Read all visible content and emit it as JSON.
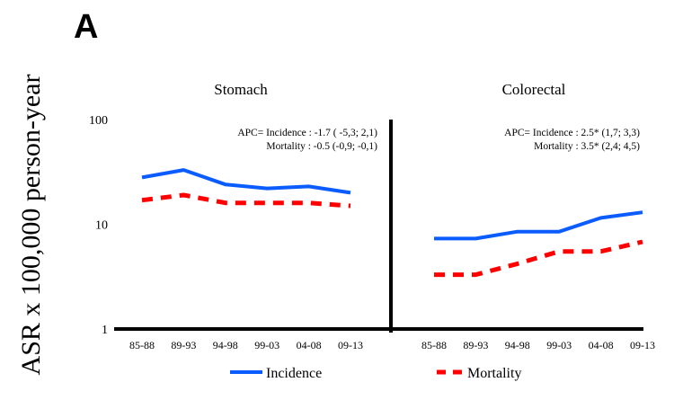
{
  "chart_data": {
    "type": "line",
    "panel_label": "A",
    "ylabel": "ASR x 100,000 person-year",
    "yscale": "log",
    "ylim": [
      1,
      100
    ],
    "yticks": [
      {
        "value": 100,
        "label": "100"
      },
      {
        "value": 10,
        "label": "10"
      },
      {
        "value": 1,
        "label": "1"
      }
    ],
    "grid": false,
    "legend": {
      "position": "bottom",
      "entries": [
        {
          "name": "Incidence",
          "color": "#0a5cff",
          "style": "solid"
        },
        {
          "name": "Mortality",
          "color": "#ff0000",
          "style": "dashed"
        }
      ]
    },
    "panels": [
      {
        "title": "Stomach",
        "categories": [
          "85-88",
          "89-93",
          "94-98",
          "99-03",
          "04-08",
          "09-13"
        ],
        "annotation": [
          "APC= Incidence : -1.7 ( -5,3; 2,1)",
          "Mortality : -0.5 (-0,9; -0,1)"
        ],
        "series": [
          {
            "name": "Incidence",
            "values": [
              28,
              33,
              24,
              22,
              23,
              20
            ]
          },
          {
            "name": "Mortality",
            "values": [
              17,
              19,
              16,
              16,
              16,
              15
            ]
          }
        ]
      },
      {
        "title": "Colorectal",
        "categories": [
          "85-88",
          "89-93",
          "94-98",
          "99-03",
          "04-08",
          "09-13"
        ],
        "annotation": [
          "APC= Incidence : 2.5* (1,7; 3,3)",
          "Mortality : 3.5* (2,4; 4,5)"
        ],
        "series": [
          {
            "name": "Incidence",
            "values": [
              7.3,
              7.3,
              8.5,
              8.5,
              11.5,
              13
            ]
          },
          {
            "name": "Mortality",
            "values": [
              3.3,
              3.3,
              4.2,
              5.5,
              5.5,
              6.8
            ]
          }
        ]
      }
    ]
  }
}
